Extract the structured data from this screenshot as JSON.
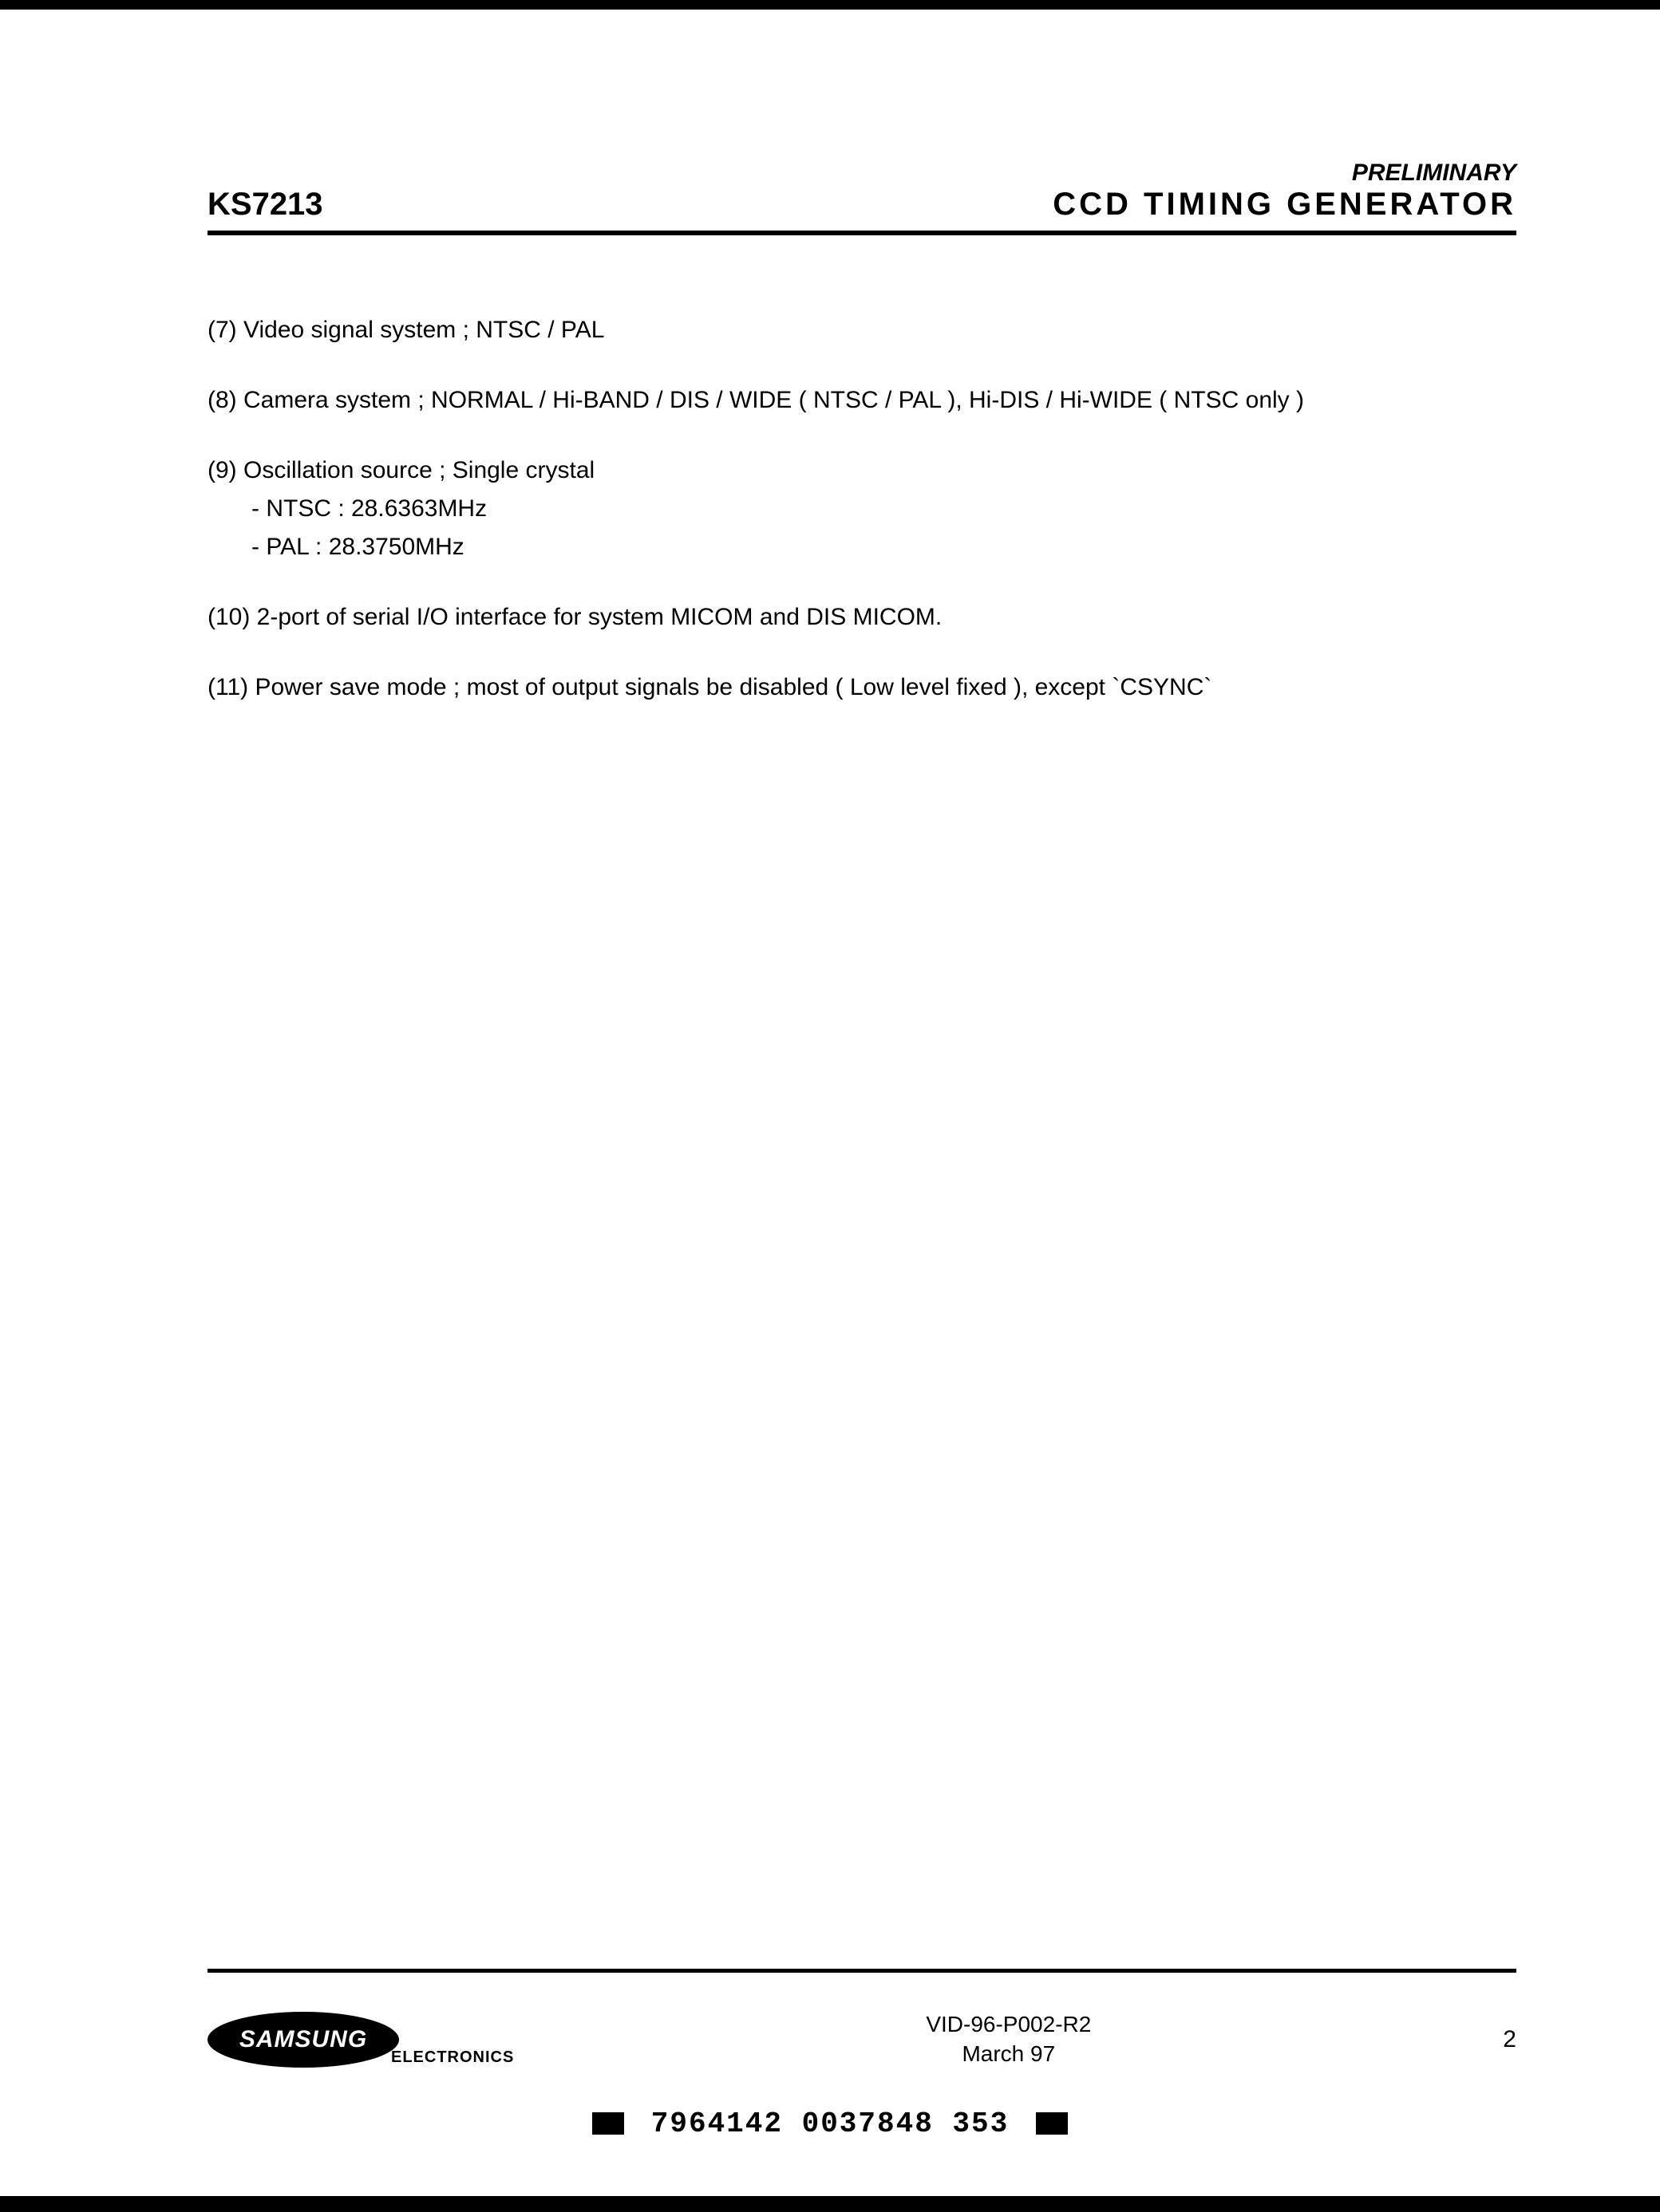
{
  "header": {
    "part_number": "KS7213",
    "preliminary": "PRELIMINARY",
    "title": "CCD  TIMING  GENERATOR"
  },
  "items": {
    "i7": "(7)  Video  signal  system ; NTSC / PAL",
    "i8": "(8)  Camera  system ; NORMAL / Hi-BAND / DIS / WIDE ( NTSC / PAL ), Hi-DIS / Hi-WIDE ( NTSC only )",
    "i9": "(9)  Oscillation  source ; Single crystal",
    "i9a": "- NTSC  : 28.6363MHz",
    "i9b": "- PAL     : 28.3750MHz",
    "i10": "(10)  2-port  of  serial  I/O  interface  for  system  MICOM  and  DIS  MICOM.",
    "i11": "(11)  Power  save  mode ; most  of  output  signals  be  disabled  ( Low level  fixed ), except  `CSYNC`"
  },
  "footer": {
    "logo_text": "SAMSUNG",
    "logo_sub": "ELECTRONICS",
    "doc_id": "VID-96-P002-R2",
    "date": "March 97",
    "page_number": "2",
    "barcode": "7964142 0037848 353"
  }
}
